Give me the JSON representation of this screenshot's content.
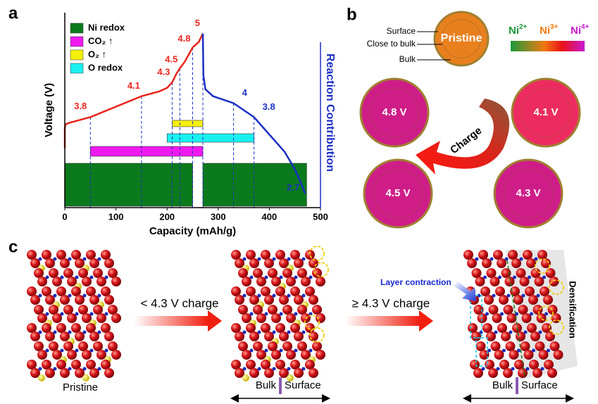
{
  "chart_data": {
    "type": "line",
    "panel_label": "a",
    "xlabel": "Capacity (mAh/g)",
    "ylabel": "Voltage (V)",
    "y2label": "Reaction Contribution",
    "xlim": [
      0,
      500
    ],
    "xticks": [
      0,
      100,
      200,
      300,
      400,
      500
    ],
    "ylim": [
      2.5,
      5.3
    ],
    "series": [
      {
        "color": "#e8251e",
        "x": [
          0,
          0,
          2,
          10,
          50,
          100,
          150,
          185,
          200,
          210,
          218,
          225,
          235,
          250,
          262,
          270
        ],
        "values": [
          3.35,
          3.65,
          3.7,
          3.72,
          3.8,
          3.95,
          4.1,
          4.17,
          4.22,
          4.3,
          4.42,
          4.5,
          4.6,
          4.8,
          4.88,
          5.0
        ]
      },
      {
        "color": "#1c2fc4",
        "x": [
          270,
          271,
          275,
          290,
          330,
          370,
          400,
          430,
          450,
          462,
          470
        ],
        "values": [
          5.0,
          4.4,
          4.2,
          4.1,
          4.0,
          3.8,
          3.55,
          3.3,
          3.05,
          2.85,
          2.7
        ]
      }
    ],
    "annotations": [
      {
        "x": 50,
        "y": 3.8,
        "color": "#e8251e"
      },
      {
        "x": 150,
        "y": 4.1,
        "color": "#e8251e"
      },
      {
        "x": 210,
        "y": 4.3,
        "color": "#e8251e"
      },
      {
        "x": 225,
        "y": 4.5,
        "color": "#e8251e"
      },
      {
        "x": 250,
        "y": 4.8,
        "color": "#e8251e"
      },
      {
        "x": 270,
        "y": 5.0,
        "color": "#e8251e"
      },
      {
        "x": 330,
        "y": 4.0,
        "color": "#1c2fc4"
      },
      {
        "x": 370,
        "y": 3.8,
        "color": "#1c2fc4"
      },
      {
        "x": 470,
        "y": 2.7,
        "color": "#1c2fc4"
      }
    ],
    "contributions": [
      {
        "name": "Ni redox",
        "color": "#0b7a1c",
        "ranges": [
          [
            0,
            250
          ],
          [
            270,
            473
          ]
        ]
      },
      {
        "name": "CO₂ ↑",
        "color": "#f01af0",
        "ranges": [
          [
            50,
            270
          ]
        ]
      },
      {
        "name": "O₂ ↑",
        "color": "#f5f00a",
        "ranges": [
          [
            210,
            270
          ]
        ]
      },
      {
        "name": "O redox",
        "color": "#1af0f0",
        "ranges": [
          [
            200,
            370
          ]
        ]
      }
    ]
  },
  "panel_b": {
    "label": "b",
    "layers": [
      "Surface",
      "Close to bulk",
      "Bulk"
    ],
    "gradient": [
      {
        "base": "Ni",
        "sup": "2+",
        "color": "#1a9a3a"
      },
      {
        "base": "Ni",
        "sup": "3+",
        "color": "#f07a10"
      },
      {
        "base": "Ni",
        "sup": "4+",
        "color": "#c81ad0"
      }
    ],
    "particles": [
      "Pristine",
      "4.1 V",
      "4.3 V",
      "4.5 V",
      "4.8 V"
    ],
    "arrow": "Charge"
  },
  "panel_c": {
    "label": "c",
    "stage": "Pristine",
    "steps": [
      "< 4.3 V charge",
      "≥ 4.3 V charge"
    ],
    "bulk_surface": [
      [
        "Bulk",
        "Surface"
      ],
      [
        "Bulk",
        "Surface"
      ]
    ],
    "notes": [
      "Layer contraction",
      "Densification"
    ]
  }
}
